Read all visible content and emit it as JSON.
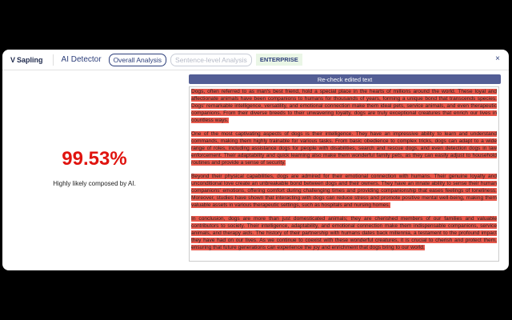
{
  "header": {
    "logo": "Sapling",
    "title": "AI Detector",
    "tabs": [
      {
        "label": "Overall Analysis",
        "active": true
      },
      {
        "label": "Sentence-level Analysis",
        "active": false
      }
    ],
    "badge": "ENTERPRISE",
    "close": "×"
  },
  "result": {
    "score": "99.53%",
    "label": "Highly likely composed by AI.",
    "score_color": "#e0140f"
  },
  "recheck_label": "Re-check edited text",
  "highlight_color": "#e8574a",
  "paragraphs": [
    "Dogs, often referred to as man's best friend, hold a special place in the hearts of millions around the world. These loyal and affectionate animals have been companions to humans for thousands of years, forming a unique bond that transcends species. Dogs' remarkable intelligence, versatility, and emotional connection make them ideal pets, service animals, and even therapeutic companions. From their diverse breeds to their unwavering loyalty, dogs are truly exceptional creatures that enrich our lives in countless ways.",
    "One of the most captivating aspects of dogs is their intelligence. They have an impressive ability to learn and understand commands, making them highly trainable for various tasks. From basic obedience to complex tricks, dogs can adapt to a wide range of roles, including assistance dogs for people with disabilities, search and rescue dogs, and even detection dogs in law enforcement. Their adaptability and quick learning also make them wonderful family pets, as they can easily adjust to household routines and provide a sense of security.",
    "Beyond their physical capabilities, dogs are admired for their emotional connection with humans. Their genuine loyalty and unconditional love create an unbreakable bond between dogs and their owners. They have an innate ability to sense their human companions' emotions, offering comfort during challenging times and providing companionship that eases feelings of loneliness. Moreover, studies have shown that interacting with dogs can reduce stress and promote positive mental well-being, making them valuable assets in various therapeutic settings, such as hospitals and nursing homes.",
    "In conclusion, dogs are more than just domesticated animals; they are cherished members of our families and valuable contributors to society. Their intelligence, adaptability, and emotional connection make them indispensable companions, service animals, and therapy aids. The history of their partnership with humans dates back millennia, a testament to the profound impact they have had on our lives. As we continue to coexist with these wonderful creatures, it is crucial to cherish and protect them, ensuring that future generations can experience the joy and enrichment that dogs bring to our world."
  ]
}
